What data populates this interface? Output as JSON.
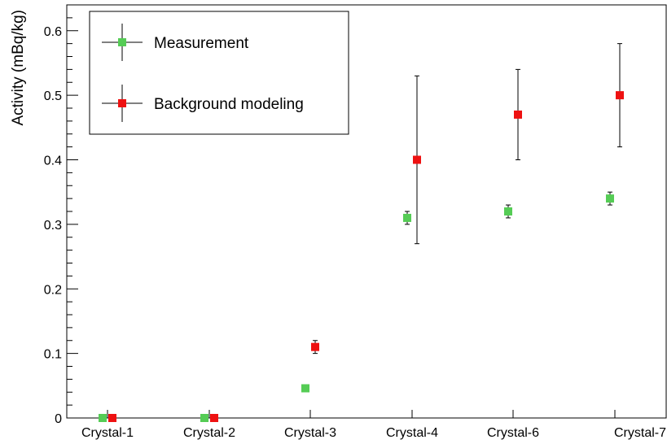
{
  "chart_data": {
    "type": "scatter",
    "ylabel": "Activity (mBq/kg)",
    "xlabel": "",
    "title": "",
    "categories": [
      "Crystal-1",
      "Crystal-2",
      "Crystal-3",
      "Crystal-4",
      "Crystal-6",
      "Crystal-7"
    ],
    "ylim": [
      0,
      0.64
    ],
    "yticks": [
      "0",
      "0.1",
      "0.2",
      "0.3",
      "0.4",
      "0.5",
      "0.6"
    ],
    "grid": false,
    "legend_position": "top-left",
    "series": [
      {
        "name": "Measurement",
        "color": "#55cc55",
        "marker": "square",
        "values": [
          0.0,
          0.0,
          0.046,
          0.31,
          0.32,
          0.34
        ],
        "err_low": [
          0.0,
          0.0,
          0.0,
          0.01,
          0.01,
          0.01
        ],
        "err_high": [
          0.0,
          0.0,
          0.0,
          0.01,
          0.01,
          0.01
        ]
      },
      {
        "name": "Background modeling",
        "color": "#ee1111",
        "marker": "square",
        "values": [
          0.0,
          0.0,
          0.11,
          0.4,
          0.47,
          0.5
        ],
        "err_low": [
          0.0,
          0.0,
          0.01,
          0.13,
          0.07,
          0.08
        ],
        "err_high": [
          0.0,
          0.0,
          0.01,
          0.13,
          0.07,
          0.08
        ]
      }
    ]
  }
}
